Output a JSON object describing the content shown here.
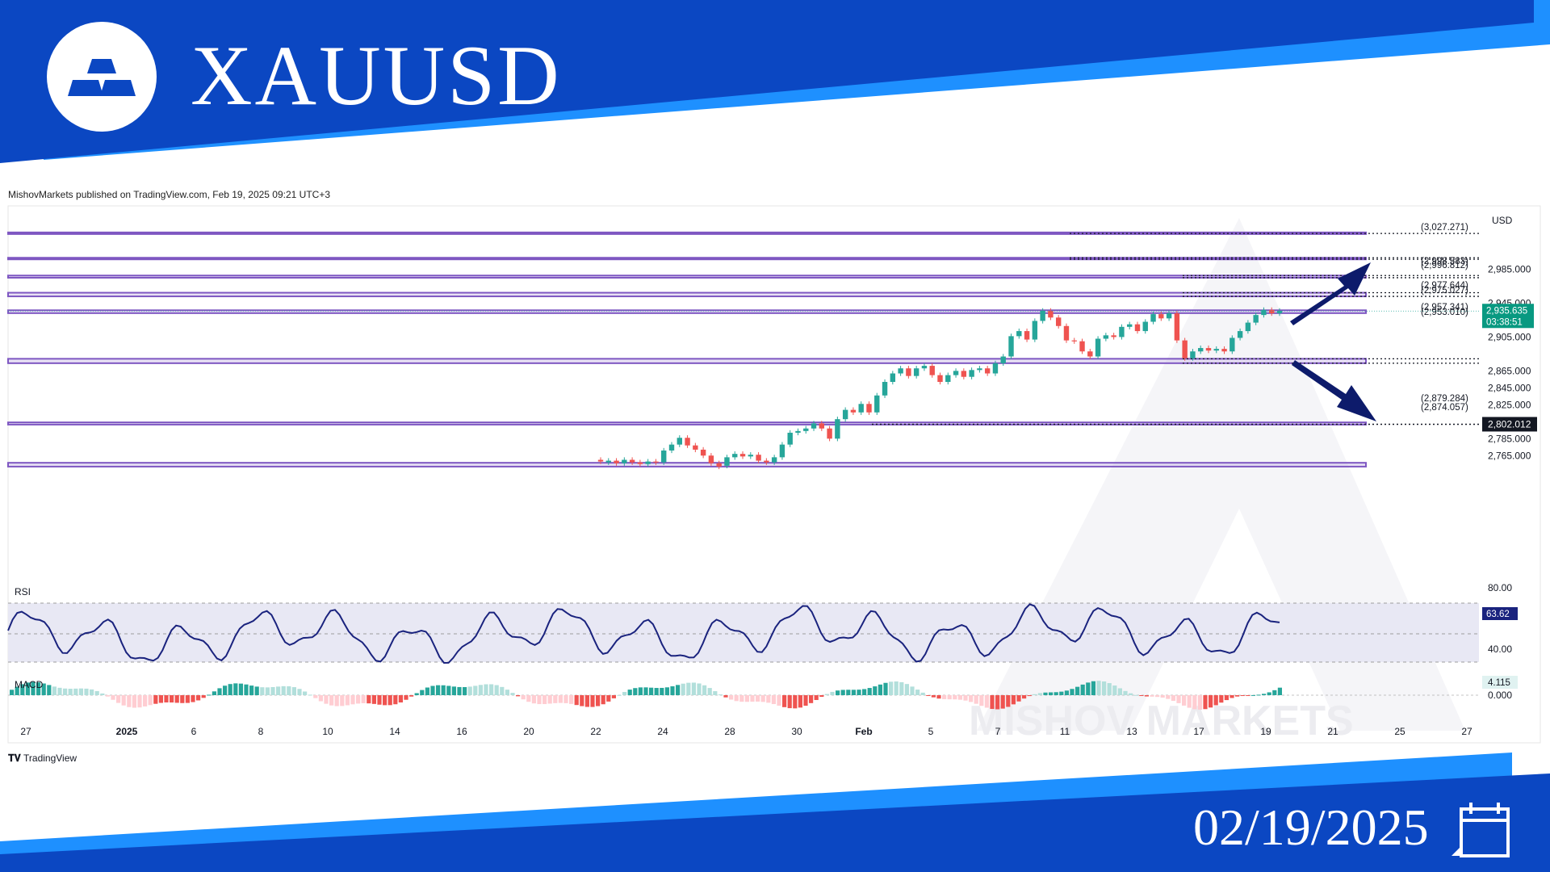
{
  "header": {
    "symbol": "XAUUSD",
    "logo": "gold-bars-logo"
  },
  "meta": {
    "published": "MishovMarkets published on TradingView.com, Feb 19, 2025 09:21 UTC+3"
  },
  "footer": {
    "date": "02/19/2025",
    "tv_brand": "TradingView",
    "calendar_icon": "calendar-icon"
  },
  "watermark": "MISHOV MARKETS",
  "colors": {
    "banner": "#0b47c2",
    "banner_light": "#1e90ff",
    "zone": "#7e57c2",
    "up": "#26a69a",
    "down": "#ef5350",
    "rsi": "#1a237e",
    "arrow": "#0d1b6b"
  },
  "chart_data": {
    "type": "candlestick",
    "currency": "USD",
    "x_ticks": [
      "27",
      "2025",
      "6",
      "8",
      "10",
      "14",
      "16",
      "20",
      "22",
      "24",
      "28",
      "30",
      "Feb",
      "5",
      "7",
      "11",
      "13",
      "17",
      "19",
      "21",
      "25",
      "27"
    ],
    "y_ticks": [
      "2,985.000",
      "2,945.000",
      "2,905.000",
      "2,865.000",
      "2,845.000",
      "2,825.000",
      "2,785.000",
      "2,765.000"
    ],
    "y_range": [
      2750,
      3036
    ],
    "current_price": "2,935.635",
    "countdown": "03:38:51",
    "highlight_price": "2,802.012",
    "levels": [
      {
        "label": "(3,027.271)",
        "value": 3027.271
      },
      {
        "label": "(2,998.583)",
        "value": 2998.583
      },
      {
        "label": "(2,996.812)",
        "value": 2996.812
      },
      {
        "label": "(2,977.644)",
        "value": 2977.644
      },
      {
        "label": "(2,975.027)",
        "value": 2975.027
      },
      {
        "label": "(2,957.341)",
        "value": 2957.341
      },
      {
        "label": "(2,953.010)",
        "value": 2953.01
      },
      {
        "label": "(2,879.284)",
        "value": 2879.284
      },
      {
        "label": "(2,874.057)",
        "value": 2874.057
      }
    ],
    "zones": [
      [
        3027.0,
        3028.5
      ],
      [
        2996.8,
        2998.6
      ],
      [
        2975.0,
        2977.6
      ],
      [
        2953.0,
        2957.3
      ],
      [
        2933.2,
        2936.6
      ],
      [
        2874.1,
        2879.3
      ],
      [
        2801.6,
        2804.2
      ],
      [
        2752.0,
        2756.5
      ]
    ],
    "candles_approx": [
      [
        2760,
        2758
      ],
      [
        2757,
        2759
      ],
      [
        2759,
        2756
      ],
      [
        2756,
        2760
      ],
      [
        2760,
        2757
      ],
      [
        2757,
        2755
      ],
      [
        2755,
        2758
      ],
      [
        2758,
        2757
      ],
      [
        2757,
        2771
      ],
      [
        2771,
        2778
      ],
      [
        2778,
        2786
      ],
      [
        2786,
        2777
      ],
      [
        2777,
        2772
      ],
      [
        2772,
        2765
      ],
      [
        2765,
        2756
      ],
      [
        2756,
        2752
      ],
      [
        2753,
        2763
      ],
      [
        2763,
        2767
      ],
      [
        2767,
        2764
      ],
      [
        2764,
        2766
      ],
      [
        2766,
        2759
      ],
      [
        2759,
        2757
      ],
      [
        2757,
        2763
      ],
      [
        2763,
        2778
      ],
      [
        2778,
        2792
      ],
      [
        2792,
        2794
      ],
      [
        2794,
        2797
      ],
      [
        2797,
        2803
      ],
      [
        2803,
        2797
      ],
      [
        2797,
        2785
      ],
      [
        2785,
        2808
      ],
      [
        2808,
        2819
      ],
      [
        2819,
        2816
      ],
      [
        2816,
        2826
      ],
      [
        2826,
        2816
      ],
      [
        2816,
        2836
      ],
      [
        2836,
        2852
      ],
      [
        2852,
        2862
      ],
      [
        2862,
        2868
      ],
      [
        2868,
        2859
      ],
      [
        2859,
        2868
      ],
      [
        2868,
        2871
      ],
      [
        2871,
        2860
      ],
      [
        2860,
        2852
      ],
      [
        2852,
        2860
      ],
      [
        2860,
        2865
      ],
      [
        2865,
        2858
      ],
      [
        2858,
        2866
      ],
      [
        2866,
        2868
      ],
      [
        2868,
        2862
      ],
      [
        2862,
        2874
      ],
      [
        2874,
        2882
      ],
      [
        2882,
        2906
      ],
      [
        2906,
        2912
      ],
      [
        2912,
        2902
      ],
      [
        2902,
        2924
      ],
      [
        2924,
        2936
      ],
      [
        2936,
        2928
      ],
      [
        2928,
        2918
      ],
      [
        2918,
        2901
      ],
      [
        2901,
        2900
      ],
      [
        2900,
        2888
      ],
      [
        2888,
        2882
      ],
      [
        2882,
        2903
      ],
      [
        2903,
        2907
      ],
      [
        2907,
        2905
      ],
      [
        2905,
        2917
      ],
      [
        2917,
        2920
      ],
      [
        2920,
        2912
      ],
      [
        2912,
        2923
      ],
      [
        2923,
        2932
      ],
      [
        2932,
        2927
      ],
      [
        2927,
        2933
      ],
      [
        2933,
        2901
      ],
      [
        2901,
        2880
      ],
      [
        2880,
        2888
      ],
      [
        2888,
        2892
      ],
      [
        2892,
        2889
      ],
      [
        2889,
        2891
      ],
      [
        2891,
        2888
      ],
      [
        2888,
        2904
      ],
      [
        2904,
        2912
      ],
      [
        2912,
        2922
      ],
      [
        2922,
        2931
      ],
      [
        2931,
        2937
      ],
      [
        2937,
        2933
      ],
      [
        2933,
        2936
      ]
    ],
    "rsi": {
      "label": "RSI",
      "value": "63.62",
      "ticks": [
        "80.00",
        "40.00"
      ]
    },
    "macd": {
      "label": "MACD",
      "value": "4.115",
      "ticks": [
        "0.000"
      ]
    }
  }
}
